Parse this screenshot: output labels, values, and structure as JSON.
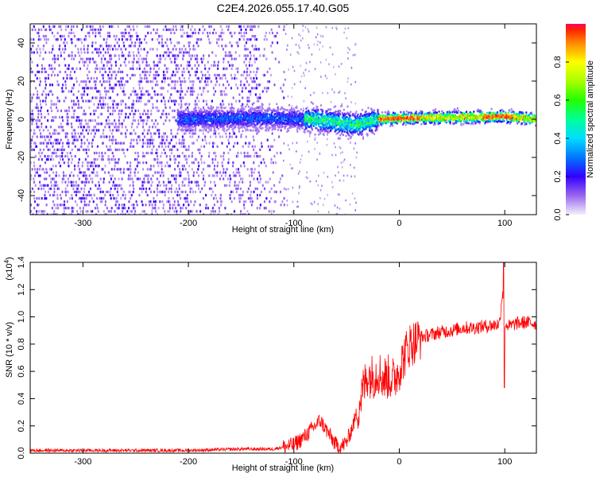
{
  "title": "C2E4.2026.055.17.40.G05",
  "chart_data": [
    {
      "type": "heatmap",
      "name": "spectrogram",
      "xlabel": "Height of straight line (km)",
      "ylabel": "Frequency (Hz)",
      "xlim": [
        -350,
        130
      ],
      "ylim": [
        -50,
        50
      ],
      "x_ticks": [
        -300,
        -200,
        -100,
        0,
        100
      ],
      "y_ticks": [
        -40,
        -20,
        0,
        20,
        40
      ],
      "x_tick_labels": [
        "-300",
        "-200",
        "-100",
        "0",
        "100"
      ],
      "y_tick_labels": [
        "-40",
        "-20",
        "0",
        "20",
        "40"
      ],
      "colorbar": {
        "label": "Normalized spectral amplitude",
        "range": [
          0.0,
          1.0
        ],
        "ticks": [
          0.0,
          0.2,
          0.4,
          0.6,
          0.8
        ],
        "tick_labels": [
          "0.0",
          "0.2",
          "0.4",
          "0.6",
          "0.8"
        ]
      },
      "features": {
        "noise_region_x": [
          -350,
          -110
        ],
        "line_start_x": -210,
        "line_center_hz": [
          [
            -210,
            0
          ],
          [
            -120,
            0.5
          ],
          [
            -80,
            0
          ],
          [
            -55,
            -2
          ],
          [
            -40,
            -3
          ],
          [
            -20,
            0
          ],
          [
            0,
            0.5
          ],
          [
            60,
            1
          ],
          [
            100,
            1.5
          ],
          [
            130,
            0
          ]
        ],
        "peak_amplitude_x": [
          -20,
          100
        ]
      }
    },
    {
      "type": "line",
      "name": "snr",
      "xlabel": "Height of straight line (km)",
      "ylabel": "SNR (10 * v/v)",
      "y_multiplier": "(x10",
      "y_multiplier_exp": "4",
      "y_multiplier_close": ")",
      "xlim": [
        -350,
        130
      ],
      "ylim": [
        0.0,
        1.4
      ],
      "x_ticks": [
        -300,
        -200,
        -100,
        0,
        100
      ],
      "y_ticks": [
        0.0,
        0.2,
        0.4,
        0.6,
        0.8,
        1.0,
        1.2,
        1.4
      ],
      "x_tick_labels": [
        "-300",
        "-200",
        "-100",
        "0",
        "100"
      ],
      "y_tick_labels": [
        "0.0",
        "0.2",
        "0.4",
        "0.6",
        "0.8",
        "1.0",
        "1.2",
        "1.4"
      ],
      "series": [
        {
          "name": "SNR",
          "color": "#ff0000",
          "x": [
            -350,
            -300,
            -200,
            -150,
            -120,
            -100,
            -90,
            -80,
            -75,
            -70,
            -65,
            -60,
            -55,
            -50,
            -45,
            -40,
            -35,
            -30,
            -25,
            -20,
            -15,
            -10,
            -5,
            0,
            5,
            10,
            15,
            20,
            30,
            40,
            50,
            60,
            70,
            80,
            90,
            95,
            98,
            100,
            105,
            110,
            120,
            130
          ],
          "y": [
            0.02,
            0.02,
            0.02,
            0.03,
            0.03,
            0.06,
            0.12,
            0.2,
            0.24,
            0.18,
            0.12,
            0.06,
            0.05,
            0.08,
            0.18,
            0.3,
            0.45,
            0.58,
            0.56,
            0.6,
            0.55,
            0.56,
            0.54,
            0.62,
            0.72,
            0.8,
            0.82,
            0.85,
            0.87,
            0.89,
            0.9,
            0.92,
            0.92,
            0.93,
            0.94,
            0.95,
            1.2,
            0.95,
            0.93,
            0.95,
            0.96,
            0.95
          ],
          "features": [
            {
              "x": 99,
              "peak": 1.42,
              "dip": 0.48
            }
          ]
        }
      ]
    }
  ]
}
